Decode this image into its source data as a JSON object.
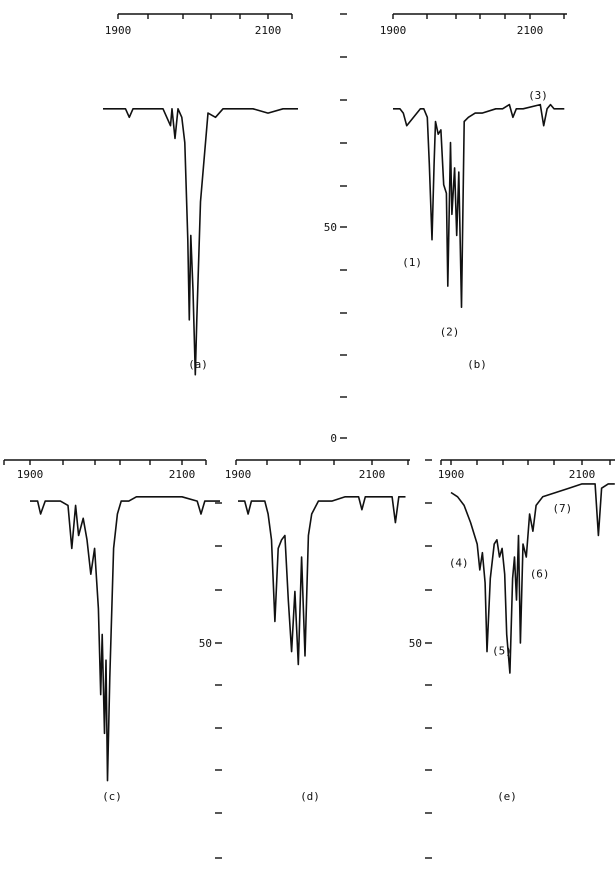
{
  "chart_data": [
    {
      "type": "line",
      "panel": "a",
      "label": "(a)",
      "x_tick_labels": [
        "1900",
        "2100"
      ],
      "xlim": [
        1900,
        2150
      ],
      "ylim": [
        0,
        100
      ],
      "peak_labels": [],
      "series": [
        {
          "x": [
            1880,
            1900,
            1910,
            1915,
            1920,
            1940,
            1960,
            1970,
            1972,
            1976,
            1980,
            1985,
            1989,
            1993,
            1995,
            1997,
            2000,
            2003,
            2005,
            2010,
            2020,
            2030,
            2040,
            2060,
            2080,
            2100,
            2120,
            2130,
            2140
          ],
          "y": [
            78,
            78,
            78,
            76,
            78,
            78,
            78,
            74,
            78,
            71,
            78,
            76,
            70,
            47,
            28,
            48,
            35,
            15,
            28,
            56,
            77,
            76,
            78,
            78,
            78,
            77,
            78,
            78,
            78
          ]
        }
      ]
    },
    {
      "type": "line",
      "panel": "b",
      "label": "(b)",
      "x_tick_labels": [
        "1900",
        "2100"
      ],
      "xlim": [
        1900,
        2150
      ],
      "ylim": [
        0,
        100
      ],
      "peak_labels": [
        {
          "text": "(1)",
          "x": 1957,
          "y": 45
        },
        {
          "text": "(2)",
          "x": 2000,
          "y": 29
        },
        {
          "text": "(3)",
          "x": 2100,
          "y": 78
        }
      ],
      "series": [
        {
          "x": [
            1900,
            1910,
            1915,
            1920,
            1940,
            1945,
            1950,
            1953,
            1957,
            1960,
            1962,
            1966,
            1970,
            1974,
            1978,
            1980,
            1984,
            1986,
            1990,
            1993,
            1996,
            2000,
            2004,
            2010,
            2020,
            2030,
            2050,
            2060,
            2070,
            2075,
            2080,
            2090,
            2115,
            2120,
            2125,
            2130,
            2135,
            2150
          ],
          "y": [
            78,
            78,
            77,
            74,
            78,
            78,
            76,
            65,
            47,
            65,
            75,
            72,
            73,
            60,
            58,
            36,
            70,
            53,
            64,
            48,
            63,
            31,
            75,
            76,
            77,
            77,
            78,
            78,
            79,
            76,
            78,
            78,
            79,
            74,
            78,
            79,
            78,
            78
          ]
        }
      ]
    },
    {
      "type": "line",
      "panel": "c",
      "label": "(c)",
      "x_tick_labels": [
        "1900",
        "2100"
      ],
      "xlim": [
        1900,
        2150
      ],
      "ylim": [
        0,
        100
      ],
      "peak_labels": [],
      "series": [
        {
          "x": [
            1900,
            1910,
            1914,
            1920,
            1940,
            1950,
            1955,
            1960,
            1964,
            1970,
            1975,
            1980,
            1985,
            1990,
            1993,
            1995,
            1998,
            2000,
            2002,
            2005,
            2010,
            2015,
            2020,
            2030,
            2040,
            2060,
            2080,
            2100,
            2120,
            2125,
            2130,
            2140,
            2150
          ],
          "y": [
            83,
            83,
            80,
            83,
            83,
            82,
            72,
            82,
            75,
            79,
            74,
            66,
            72,
            58,
            38,
            52,
            29,
            46,
            18,
            42,
            72,
            80,
            83,
            83,
            84,
            84,
            84,
            84,
            83,
            80,
            83,
            83,
            83
          ]
        }
      ]
    },
    {
      "type": "line",
      "panel": "d",
      "label": "(d)",
      "x_tick_labels": [
        "1900",
        "2100"
      ],
      "xlim": [
        1900,
        2150
      ],
      "ylim": [
        0,
        100
      ],
      "peak_labels": [],
      "series": [
        {
          "x": [
            1900,
            1910,
            1915,
            1920,
            1940,
            1945,
            1950,
            1955,
            1960,
            1965,
            1970,
            1975,
            1980,
            1985,
            1990,
            1995,
            2000,
            2005,
            2010,
            2020,
            2040,
            2060,
            2080,
            2085,
            2090,
            2100,
            2120,
            2130,
            2135,
            2140,
            2150
          ],
          "y": [
            83,
            83,
            80,
            83,
            83,
            80,
            74,
            55,
            72,
            74,
            75,
            60,
            48,
            62,
            45,
            70,
            47,
            75,
            80,
            83,
            83,
            84,
            84,
            81,
            84,
            84,
            84,
            84,
            78,
            84,
            84
          ]
        }
      ]
    },
    {
      "type": "line",
      "panel": "e",
      "label": "(e)",
      "x_tick_labels": [
        "1900",
        "2100"
      ],
      "xlim": [
        1900,
        2150
      ],
      "ylim": [
        0,
        100
      ],
      "peak_labels": [
        {
          "text": "(4)",
          "x": 1950,
          "y": 69
        },
        {
          "text": "(5)",
          "x": 1990,
          "y": 52
        },
        {
          "text": "(6)",
          "x": 2017,
          "y": 68
        },
        {
          "text": "(7)",
          "x": 2070,
          "y": 80
        }
      ],
      "series": [
        {
          "x": [
            1900,
            1910,
            1920,
            1930,
            1940,
            1944,
            1948,
            1952,
            1955,
            1960,
            1966,
            1970,
            1974,
            1978,
            1982,
            1985,
            1990,
            1994,
            1997,
            2000,
            2003,
            2006,
            2010,
            2015,
            2020,
            2025,
            2030,
            2040,
            2060,
            2080,
            2100,
            2110,
            2120,
            2125,
            2130,
            2140,
            2150
          ],
          "y": [
            85,
            84,
            82,
            78,
            73,
            67,
            71,
            64,
            48,
            65,
            73,
            74,
            70,
            72,
            66,
            52,
            43,
            65,
            70,
            60,
            75,
            50,
            73,
            70,
            80,
            76,
            82,
            84,
            85,
            86,
            87,
            87,
            87,
            75,
            86,
            87,
            87
          ]
        }
      ]
    }
  ],
  "y_axes": [
    {
      "id": "upper",
      "tick_labels": [
        {
          "text": "50",
          "value": 50
        },
        {
          "text": "0",
          "value": 0
        }
      ]
    },
    {
      "id": "lower-left",
      "tick_labels": [
        {
          "text": "50",
          "value": 50
        }
      ]
    },
    {
      "id": "lower-right",
      "tick_labels": [
        {
          "text": "50",
          "value": 50
        }
      ]
    }
  ]
}
